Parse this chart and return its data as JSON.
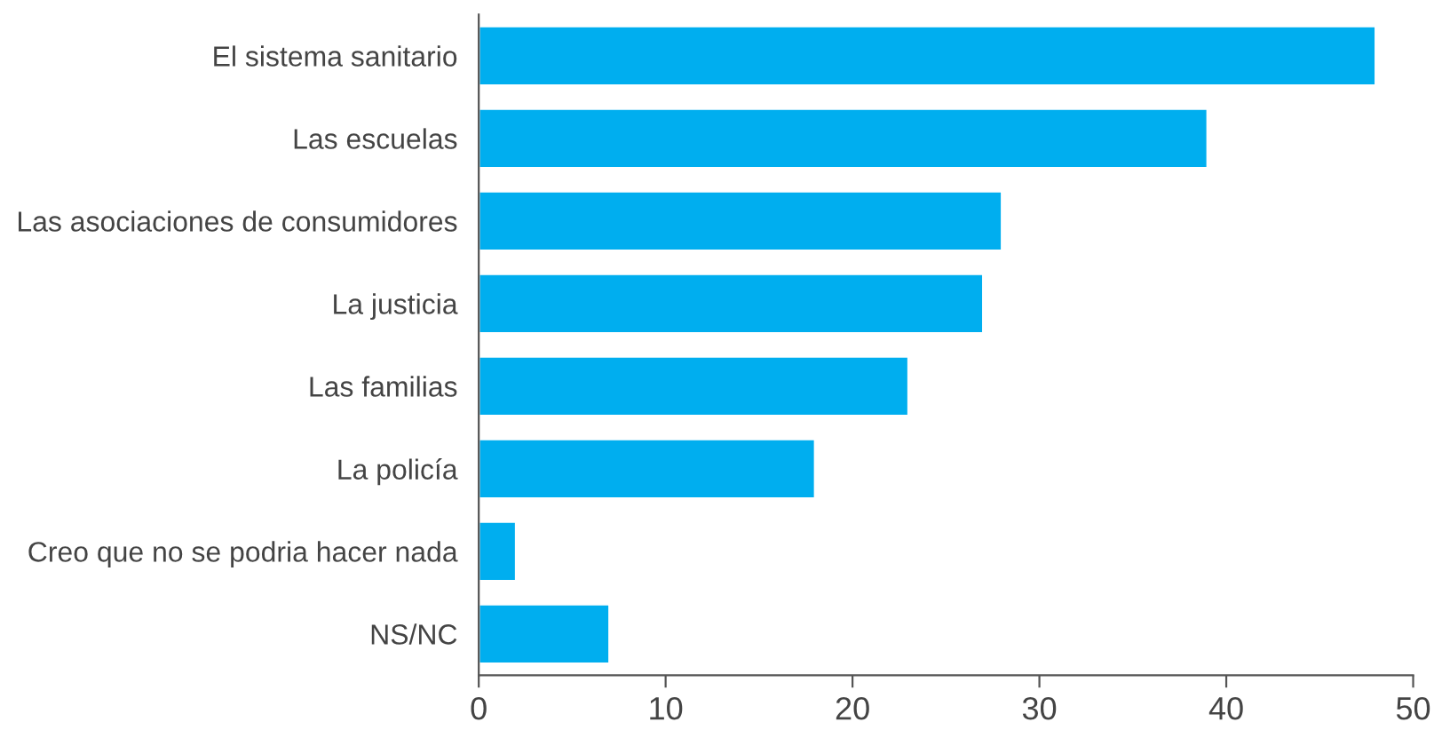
{
  "chart_data": {
    "type": "bar",
    "orientation": "horizontal",
    "categories": [
      "El sistema sanitario",
      "Las escuelas",
      "Las asociaciones de consumidores",
      "La justicia",
      "Las familias",
      "La policía",
      "Creo que no se podria hacer nada",
      "NS/NC"
    ],
    "values": [
      48,
      39,
      28,
      27,
      23,
      18,
      2,
      7
    ],
    "color": "#00aeef",
    "xlim": [
      0,
      50
    ],
    "xticks": [
      0,
      10,
      20,
      30,
      40,
      50
    ],
    "grid": false,
    "legend": false
  }
}
